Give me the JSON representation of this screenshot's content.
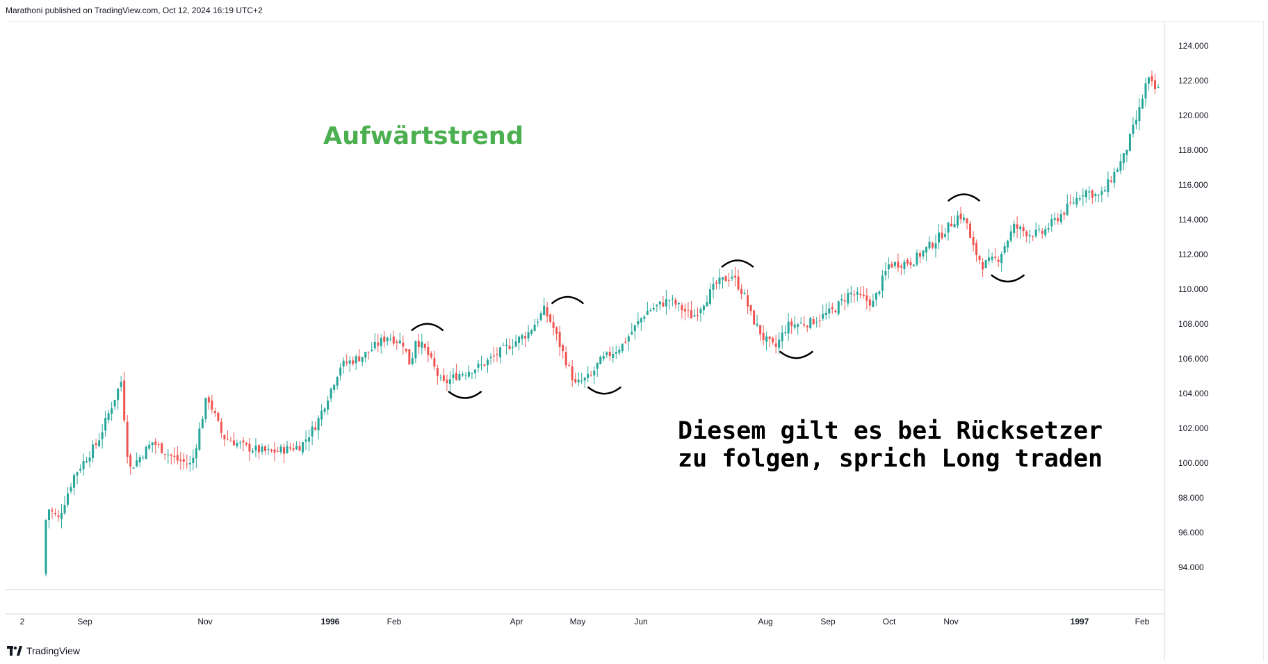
{
  "header": {
    "text": "Marathoni published on TradingView.com, Oct 12, 2024 16:19 UTC+2"
  },
  "footer": {
    "brand": "TradingView"
  },
  "annotations": {
    "title": "Aufwärtstrend",
    "body_line1": "Diesem gilt es bei Rücksetzer",
    "body_line2": "zu folgen, sprich Long traden"
  },
  "colors": {
    "up": "#26a69a",
    "down": "#ef5350",
    "annotation_green": "#4caf50",
    "arc": "#000000"
  },
  "chart_data": {
    "type": "candlestick",
    "title": "",
    "xlabel": "",
    "ylabel": "",
    "ylim": [
      93.2,
      125.0
    ],
    "grid": false,
    "y_ticks": [
      "124.000",
      "122.000",
      "120.000",
      "118.000",
      "116.000",
      "114.000",
      "112.000",
      "110.000",
      "108.000",
      "106.000",
      "104.000",
      "102.000",
      "100.000",
      "98.000",
      "96.000",
      "94.000"
    ],
    "x_ticks": [
      {
        "label": "2",
        "bold": false
      },
      {
        "label": "Sep",
        "bold": false
      },
      {
        "label": "Nov",
        "bold": false
      },
      {
        "label": "1996",
        "bold": true
      },
      {
        "label": "Feb",
        "bold": false
      },
      {
        "label": "Apr",
        "bold": false
      },
      {
        "label": "May",
        "bold": false
      },
      {
        "label": "Jun",
        "bold": false
      },
      {
        "label": "Aug",
        "bold": false
      },
      {
        "label": "Sep",
        "bold": false
      },
      {
        "label": "Oct",
        "bold": false
      },
      {
        "label": "Nov",
        "bold": false
      },
      {
        "label": "1997",
        "bold": true
      },
      {
        "label": "Feb",
        "bold": false
      }
    ],
    "price_path": [
      [
        0,
        93.6
      ],
      [
        5,
        97.5
      ],
      [
        20,
        96.8
      ],
      [
        40,
        99.3
      ],
      [
        70,
        101.2
      ],
      [
        100,
        104.7
      ],
      [
        110,
        99.6
      ],
      [
        140,
        101.2
      ],
      [
        170,
        100.2
      ],
      [
        190,
        99.9
      ],
      [
        210,
        103.9
      ],
      [
        230,
        101.5
      ],
      [
        260,
        100.9
      ],
      [
        290,
        100.6
      ],
      [
        330,
        101.0
      ],
      [
        350,
        102.3
      ],
      [
        380,
        105.6
      ],
      [
        410,
        106.2
      ],
      [
        440,
        107.3
      ],
      [
        460,
        106.9
      ],
      [
        470,
        105.5
      ],
      [
        475,
        107.2
      ],
      [
        490,
        106.4
      ],
      [
        510,
        104.5
      ],
      [
        530,
        105.1
      ],
      [
        560,
        105.6
      ],
      [
        590,
        106.6
      ],
      [
        620,
        107.5
      ],
      [
        640,
        108.8
      ],
      [
        650,
        108.0
      ],
      [
        660,
        106.8
      ],
      [
        680,
        104.5
      ],
      [
        700,
        105.0
      ],
      [
        710,
        105.8
      ],
      [
        740,
        106.8
      ],
      [
        770,
        108.7
      ],
      [
        800,
        109.4
      ],
      [
        830,
        108.4
      ],
      [
        860,
        110.3
      ],
      [
        880,
        110.8
      ],
      [
        895,
        109.7
      ],
      [
        905,
        108.4
      ],
      [
        920,
        107.2
      ],
      [
        935,
        106.6
      ],
      [
        950,
        107.9
      ],
      [
        980,
        108.1
      ],
      [
        1010,
        108.8
      ],
      [
        1030,
        109.8
      ],
      [
        1060,
        109.2
      ],
      [
        1080,
        111.4
      ],
      [
        1110,
        111.6
      ],
      [
        1140,
        112.8
      ],
      [
        1170,
        114.3
      ],
      [
        1180,
        113.8
      ],
      [
        1185,
        112.6
      ],
      [
        1200,
        111.4
      ],
      [
        1220,
        111.8
      ],
      [
        1240,
        113.6
      ],
      [
        1260,
        113.2
      ],
      [
        1275,
        113.2
      ],
      [
        1300,
        114.3
      ],
      [
        1330,
        115.7
      ],
      [
        1350,
        115.3
      ],
      [
        1380,
        117.6
      ],
      [
        1400,
        120.3
      ],
      [
        1410,
        122.1
      ],
      [
        1420,
        121.5
      ]
    ],
    "arcs": [
      {
        "position": "top",
        "time": 487,
        "price": 107.65,
        "width": 44,
        "depth": 9
      },
      {
        "position": "bottom",
        "time": 535,
        "price": 104.1,
        "width": 46,
        "depth": 9
      },
      {
        "position": "top",
        "time": 666,
        "price": 109.2,
        "width": 44,
        "depth": 9
      },
      {
        "position": "bottom",
        "time": 713,
        "price": 104.35,
        "width": 46,
        "depth": 9
      },
      {
        "position": "top",
        "time": 883,
        "price": 111.3,
        "width": 44,
        "depth": 9
      },
      {
        "position": "bottom",
        "time": 958,
        "price": 106.4,
        "width": 46,
        "depth": 9
      },
      {
        "position": "top",
        "time": 1172,
        "price": 115.1,
        "width": 44,
        "depth": 9
      },
      {
        "position": "bottom",
        "time": 1228,
        "price": 110.8,
        "width": 46,
        "depth": 9
      }
    ]
  }
}
